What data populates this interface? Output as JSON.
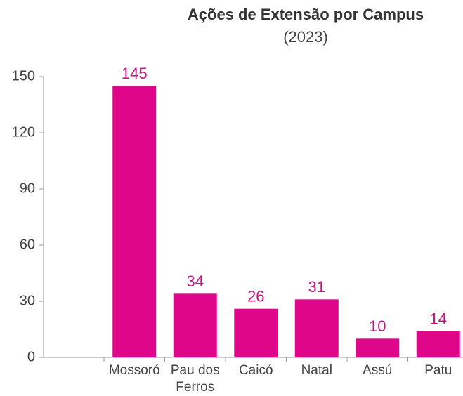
{
  "chart_data": {
    "type": "bar",
    "title": "Ações de Extensão por Campus",
    "subtitle": "(2023)",
    "categories": [
      "Mossoró",
      "Pau dos Ferros",
      "Caicó",
      "Natal",
      "Assú",
      "Patu"
    ],
    "values": [
      145,
      34,
      26,
      31,
      10,
      14
    ],
    "color": "#e0068a",
    "label_color": "#c8137f",
    "ylim": [
      0,
      150
    ],
    "yticks": [
      0,
      30,
      60,
      90,
      120,
      150
    ],
    "grid": false
  }
}
